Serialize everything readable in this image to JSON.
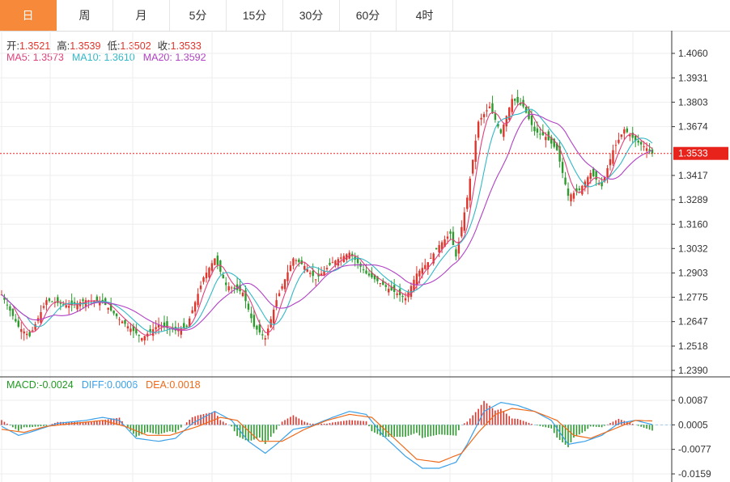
{
  "tabs": [
    "日",
    "周",
    "月",
    "5分",
    "15分",
    "30分",
    "60分",
    "4时"
  ],
  "active_tab": 0,
  "ohlc_info": [
    {
      "label": "开:",
      "value": "1.3521"
    },
    {
      "label": "高:",
      "value": "1.3539"
    },
    {
      "label": "低:",
      "value": "1.3502"
    },
    {
      "label": "收:",
      "value": "1.3533"
    }
  ],
  "ma_info": [
    {
      "label": "MA5:",
      "value": "1.3573",
      "color": "#e0407a"
    },
    {
      "label": "MA10:",
      "value": "1.3610",
      "color": "#32b8c6"
    },
    {
      "label": "MA20:",
      "value": "1.3592",
      "color": "#b041c4"
    }
  ],
  "macd_info": [
    {
      "label": "MACD:",
      "value": "-0.0024",
      "color": "#1f9a1f"
    },
    {
      "label": "DIFF:",
      "value": "0.0006",
      "color": "#3aa0e8"
    },
    {
      "label": "DEA:",
      "value": "0.0018",
      "color": "#ee6a1a"
    }
  ],
  "colors": {
    "up": "#e0352c",
    "down": "#2c9a2c",
    "grid": "#eeeeee",
    "last_price_bg": "#e8231c",
    "ma5": "#e0407a",
    "ma10": "#32b8c6",
    "ma20": "#b041c4",
    "diff": "#3aa0e8",
    "dea": "#ee6a1a"
  },
  "chart_data": [
    {
      "type": "candlestick",
      "ylim": [
        1.239,
        1.406
      ],
      "y_ticks": [
        "1.4060",
        "1.3931",
        "1.3803",
        "1.3674",
        "1.3417",
        "1.3289",
        "1.3160",
        "1.3032",
        "1.2903",
        "1.2775",
        "1.2647",
        "1.2518",
        "1.2390"
      ],
      "last_price": "1.3533",
      "grid": true,
      "close_anchors": [
        [
          0,
          1.279
        ],
        [
          6,
          1.262
        ],
        [
          10,
          1.257
        ],
        [
          16,
          1.276
        ],
        [
          24,
          1.273
        ],
        [
          30,
          1.276
        ],
        [
          36,
          1.275
        ],
        [
          42,
          1.266
        ],
        [
          50,
          1.256
        ],
        [
          56,
          1.263
        ],
        [
          62,
          1.26
        ],
        [
          66,
          1.262
        ],
        [
          72,
          1.288
        ],
        [
          76,
          1.298
        ],
        [
          80,
          1.284
        ],
        [
          86,
          1.28
        ],
        [
          90,
          1.262
        ],
        [
          94,
          1.256
        ],
        [
          98,
          1.276
        ],
        [
          104,
          1.298
        ],
        [
          108,
          1.294
        ],
        [
          112,
          1.287
        ],
        [
          118,
          1.296
        ],
        [
          124,
          1.301
        ],
        [
          130,
          1.29
        ],
        [
          134,
          1.286
        ],
        [
          138,
          1.282
        ],
        [
          144,
          1.277
        ],
        [
          148,
          1.29
        ],
        [
          152,
          1.296
        ],
        [
          156,
          1.305
        ],
        [
          160,
          1.311
        ],
        [
          162,
          1.299
        ],
        [
          166,
          1.33
        ],
        [
          170,
          1.37
        ],
        [
          174,
          1.378
        ],
        [
          178,
          1.364
        ],
        [
          182,
          1.382
        ],
        [
          186,
          1.378
        ],
        [
          190,
          1.365
        ],
        [
          194,
          1.362
        ],
        [
          198,
          1.355
        ],
        [
          202,
          1.331
        ],
        [
          206,
          1.334
        ],
        [
          210,
          1.343
        ],
        [
          214,
          1.336
        ],
        [
          218,
          1.355
        ],
        [
          222,
          1.366
        ],
        [
          226,
          1.36
        ],
        [
          230,
          1.356
        ],
        [
          232,
          1.3533
        ]
      ],
      "macd_panel": {
        "ylim": [
          -0.0159,
          0.0087
        ],
        "y_ticks": [
          "0.0087",
          "0.0005",
          "-0.0077",
          "-0.0159"
        ],
        "diff_anchors": [
          [
            0,
            0.0
          ],
          [
            6,
            -0.003
          ],
          [
            10,
            -0.002
          ],
          [
            20,
            0.001
          ],
          [
            30,
            0.002
          ],
          [
            36,
            0.003
          ],
          [
            42,
            0.002
          ],
          [
            48,
            -0.004
          ],
          [
            56,
            -0.005
          ],
          [
            62,
            -0.004
          ],
          [
            68,
            0.001
          ],
          [
            76,
            0.005
          ],
          [
            82,
            0.002
          ],
          [
            88,
            -0.005
          ],
          [
            94,
            -0.009
          ],
          [
            98,
            -0.006
          ],
          [
            104,
            -0.001
          ],
          [
            110,
            0.0
          ],
          [
            118,
            0.003
          ],
          [
            124,
            0.005
          ],
          [
            130,
            0.004
          ],
          [
            136,
            -0.003
          ],
          [
            144,
            -0.01
          ],
          [
            150,
            -0.014
          ],
          [
            156,
            -0.014
          ],
          [
            162,
            -0.012
          ],
          [
            166,
            -0.006
          ],
          [
            172,
            0.005
          ],
          [
            178,
            0.008
          ],
          [
            184,
            0.007
          ],
          [
            190,
            0.005
          ],
          [
            196,
            0.002
          ],
          [
            202,
            -0.006
          ],
          [
            208,
            -0.005
          ],
          [
            214,
            -0.003
          ],
          [
            220,
            0.001
          ],
          [
            226,
            0.002
          ],
          [
            232,
            0.0006
          ]
        ],
        "dea_anchors": [
          [
            0,
            -0.001
          ],
          [
            8,
            -0.002
          ],
          [
            16,
            0.0
          ],
          [
            26,
            0.001
          ],
          [
            36,
            0.002
          ],
          [
            44,
            0.0
          ],
          [
            52,
            -0.003
          ],
          [
            60,
            -0.003
          ],
          [
            70,
            0.0
          ],
          [
            78,
            0.003
          ],
          [
            84,
            0.002
          ],
          [
            92,
            -0.005
          ],
          [
            100,
            -0.005
          ],
          [
            108,
            -0.001
          ],
          [
            116,
            0.002
          ],
          [
            124,
            0.004
          ],
          [
            132,
            0.003
          ],
          [
            140,
            -0.004
          ],
          [
            148,
            -0.011
          ],
          [
            156,
            -0.012
          ],
          [
            164,
            -0.009
          ],
          [
            170,
            -0.002
          ],
          [
            176,
            0.004
          ],
          [
            182,
            0.006
          ],
          [
            190,
            0.005
          ],
          [
            198,
            0.002
          ],
          [
            204,
            -0.003
          ],
          [
            210,
            -0.004
          ],
          [
            218,
            -0.001
          ],
          [
            226,
            0.002
          ],
          [
            232,
            0.0018
          ]
        ]
      }
    }
  ]
}
